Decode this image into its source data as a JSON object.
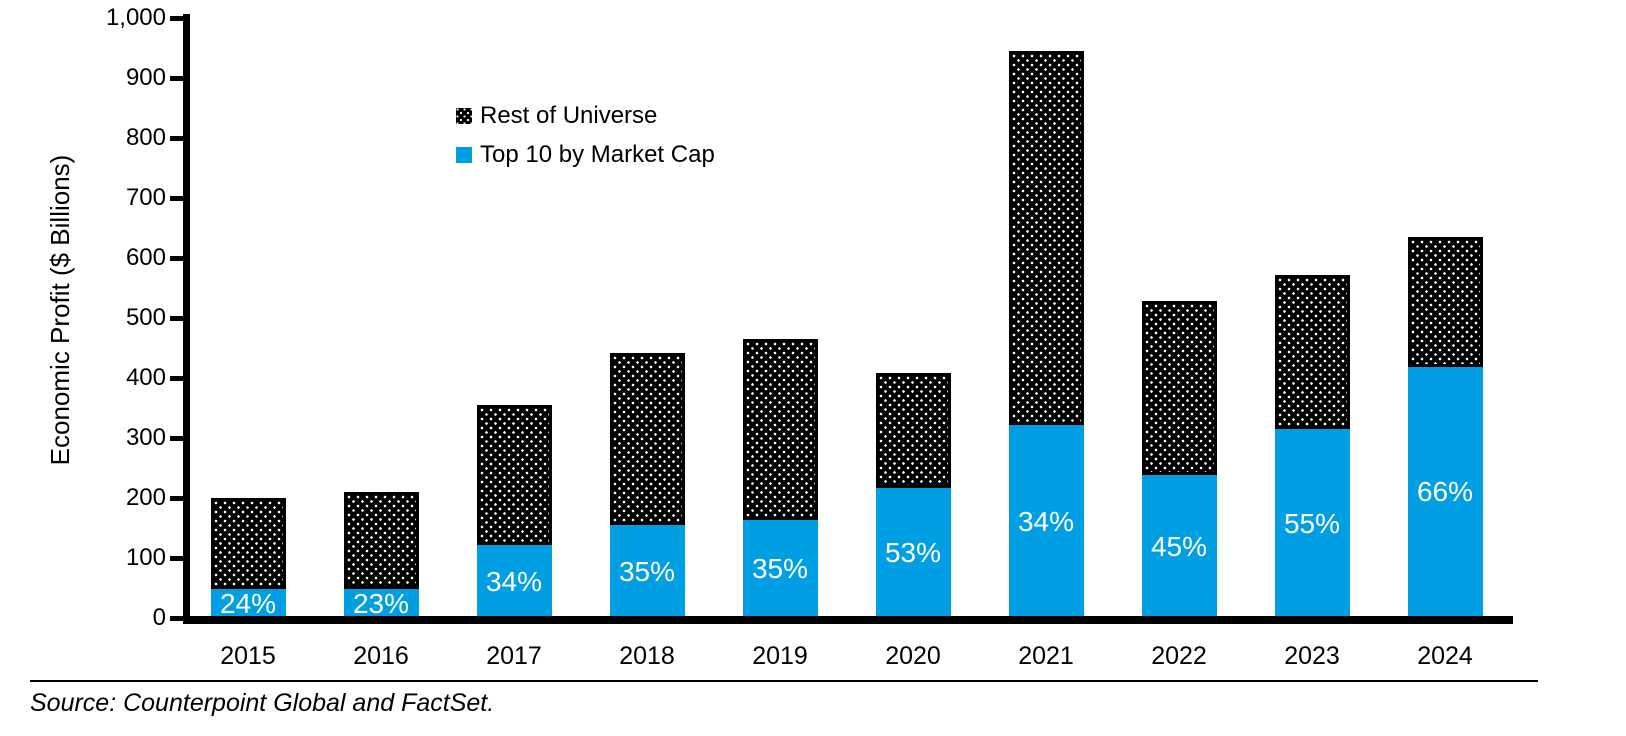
{
  "chart_data": {
    "type": "bar",
    "stacked": true,
    "title": "",
    "xlabel": "",
    "ylabel": "Economic Profit ($ Billions)",
    "ylim": [
      0,
      1000
    ],
    "ytick_interval": 100,
    "ytick_labels": [
      "0",
      "100",
      "200",
      "300",
      "400",
      "500",
      "600",
      "700",
      "800",
      "900",
      "1,000"
    ],
    "grid": "off",
    "categories": [
      "2015",
      "2016",
      "2017",
      "2018",
      "2019",
      "2020",
      "2021",
      "2022",
      "2023",
      "2024"
    ],
    "series": [
      {
        "name": "Top 10 by Market Cap",
        "color": "#009FE3",
        "values": [
          48,
          48,
          121,
          155,
          163,
          216,
          321,
          238,
          315,
          419
        ],
        "data_labels": [
          "24%",
          "23%",
          "34%",
          "35%",
          "35%",
          "53%",
          "34%",
          "45%",
          "55%",
          "66%"
        ],
        "data_label_color": "#FFFFFF"
      },
      {
        "name": "Rest of Universe",
        "color": "#000000",
        "pattern": "white-dots-on-black",
        "values": [
          152,
          162,
          234,
          287,
          302,
          192,
          624,
          290,
          257,
          216
        ]
      }
    ],
    "totals": [
      200,
      210,
      355,
      442,
      465,
      408,
      945,
      528,
      572,
      635
    ],
    "legend": [
      {
        "label": "Rest of Universe",
        "swatch": "dotted-black"
      },
      {
        "label": "Top 10 by Market Cap",
        "swatch": "solid-blue"
      }
    ],
    "legend_position": "inside-top-left",
    "source": "Source: Counterpoint Global and FactSet."
  }
}
